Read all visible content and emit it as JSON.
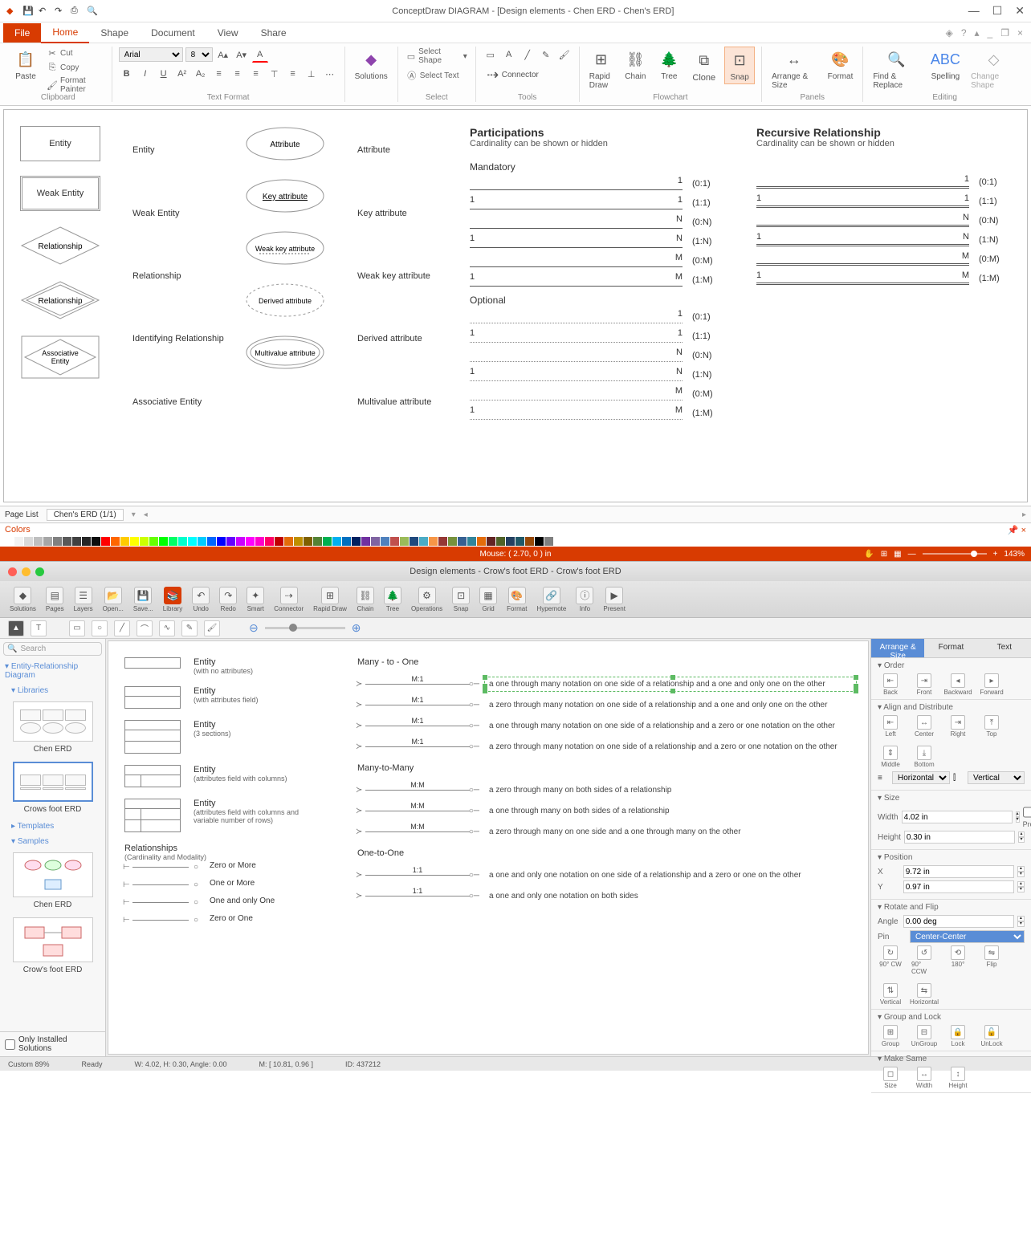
{
  "win": {
    "title": "ConceptDraw DIAGRAM - [Design elements - Chen ERD - Chen's ERD]",
    "file": "File",
    "tabs": [
      "Home",
      "Shape",
      "Document",
      "View",
      "Share"
    ],
    "active_tab": 0,
    "clipboard": {
      "paste": "Paste",
      "cut": "Cut",
      "copy": "Copy",
      "painter": "Format Painter",
      "label": "Clipboard"
    },
    "font": {
      "family": "Arial",
      "size": "8",
      "label": "Text Format"
    },
    "solutions": "Solutions",
    "select": {
      "selshape": "Select Shape",
      "seltext": "Select Text",
      "label": "Select"
    },
    "tools": {
      "connector": "Connector",
      "label": "Tools"
    },
    "flowchart": {
      "rapid": "Rapid Draw",
      "chain": "Chain",
      "tree": "Tree",
      "clone": "Clone",
      "snap": "Snap",
      "label": "Flowchart"
    },
    "panels": {
      "arrange": "Arrange & Size",
      "format": "Format",
      "label": "Panels"
    },
    "editing": {
      "find": "Find & Replace",
      "spell": "Spelling",
      "change": "Change Shape",
      "label": "Editing"
    },
    "page_list": "Page List",
    "page_tab": "Chen's ERD (1/1)",
    "colors_label": "Colors",
    "status_mouse": "Mouse: ( 2.70, 0 ) in",
    "zoom": "143%"
  },
  "chen": {
    "shapes": [
      {
        "name": "Entity",
        "label": "Entity"
      },
      {
        "name": "Weak Entity",
        "label": "Weak Entity"
      },
      {
        "name": "Relationship",
        "label": "Relationship"
      },
      {
        "name": "Relationship",
        "label": "Identifying Relationship"
      },
      {
        "name": "Associative Entity",
        "label": "Associative Entity"
      }
    ],
    "attrs": [
      {
        "name": "Attribute",
        "label": "Attribute"
      },
      {
        "name": "Key attribute",
        "label": "Key attribute"
      },
      {
        "name": "Weak key attribute",
        "label": "Weak key attribute"
      },
      {
        "name": "Derived attribute",
        "label": "Derived attribute"
      },
      {
        "name": "Multivalue attribute",
        "label": "Multivalue attribute"
      }
    ],
    "part_h": "Participations",
    "part_sub": "Cardinality can be shown or hidden",
    "rec_h": "Recursive Relationship",
    "rec_sub": "Cardinality can be shown or hidden",
    "mandatory": "Mandatory",
    "optional": "Optional",
    "cards": [
      {
        "l": "",
        "r": "1",
        "lbl": "(0:1)"
      },
      {
        "l": "1",
        "r": "1",
        "lbl": "(1:1)"
      },
      {
        "l": "",
        "r": "N",
        "lbl": "(0:N)"
      },
      {
        "l": "1",
        "r": "N",
        "lbl": "(1:N)"
      },
      {
        "l": "",
        "r": "M",
        "lbl": "(0:M)"
      },
      {
        "l": "1",
        "r": "M",
        "lbl": "(1:M)"
      }
    ],
    "opt_cards": [
      {
        "l": "",
        "r": "1",
        "lbl": "(0:1)"
      },
      {
        "l": "1",
        "r": "1",
        "lbl": "(1:1)"
      },
      {
        "l": "",
        "r": "N",
        "lbl": "(0:N)"
      },
      {
        "l": "1",
        "r": "N",
        "lbl": "(1:N)"
      },
      {
        "l": "",
        "r": "M",
        "lbl": "(0:M)"
      },
      {
        "l": "1",
        "r": "M",
        "lbl": "(1:M)"
      }
    ]
  },
  "mac": {
    "title": "Design elements - Crow's foot ERD - Crow's foot ERD",
    "tb": [
      "Solutions",
      "Pages",
      "Layers",
      "Open...",
      "Save...",
      "Library",
      "Undo",
      "Redo",
      "Smart",
      "Connector",
      "Rapid Draw",
      "Chain",
      "Tree",
      "Operations",
      "Snap",
      "Grid",
      "Format",
      "Hypernote",
      "Info",
      "Present"
    ],
    "search": "Search",
    "tree_hdr": "Entity-Relationship Diagram",
    "libraries": "Libraries",
    "lib1": "Chen ERD",
    "lib2": "Crows foot ERD",
    "templates": "Templates",
    "samples": "Samples",
    "sample1": "Chen ERD",
    "sample2": "Crow's foot ERD",
    "only_installed": "Only Installed Solutions",
    "status": {
      "ready": "Ready",
      "custom": "Custom 89%",
      "wh": "W: 4.02, H: 0.30, Angle: 0.00",
      "m": "M: [ 10.81, 0.96 ]",
      "id": "ID: 437212"
    }
  },
  "cf": {
    "entities": [
      {
        "t": "Entity",
        "s": "(with no attributes)",
        "sections": 1
      },
      {
        "t": "Entity",
        "s": "(with attributes field)",
        "sections": 2
      },
      {
        "t": "Entity",
        "s": "(3 sections)",
        "sections": 3
      },
      {
        "t": "Entity",
        "s": "(attributes field with columns)",
        "sections": 2,
        "cols": true
      },
      {
        "t": "Entity",
        "s": "(attributes field with columns and variable number of rows)",
        "sections": 3,
        "cols": true
      }
    ],
    "rel_h": "Relationships",
    "rel_s": "(Cardinality and Modality)",
    "rel_simple": [
      "Zero or More",
      "One or More",
      "One and only One",
      "Zero or One"
    ],
    "mto_h": "Many - to - One",
    "mto": [
      {
        "mid": "M:1",
        "d": "a one through many notation on one side of a relationship and a one and only one on the other",
        "sel": true
      },
      {
        "mid": "M:1",
        "d": "a zero through many notation on one side of a relationship and a one and only one on the other"
      },
      {
        "mid": "M:1",
        "d": "a one through many notation on one side of a relationship and a zero or one notation on the other"
      },
      {
        "mid": "M:1",
        "d": "a zero through many notation on one side of a relationship and a zero or one notation on the other"
      }
    ],
    "mtm_h": "Many-to-Many",
    "mtm": [
      {
        "mid": "M:M",
        "d": "a zero through many on both sides of a relationship"
      },
      {
        "mid": "M:M",
        "d": "a one through many on both sides of a relationship"
      },
      {
        "mid": "M:M",
        "d": "a zero through many on one side and a one through many on the other"
      }
    ],
    "oto_h": "One-to-One",
    "oto": [
      {
        "mid": "1:1",
        "d": "a one and only one notation on one side of a relationship and a zero or one on the other"
      },
      {
        "mid": "1:1",
        "d": "a one and only one notation on both sides"
      }
    ]
  },
  "insp": {
    "tabs": [
      "Arrange & Size",
      "Format",
      "Text"
    ],
    "order": "Order",
    "order_items": [
      "Back",
      "Front",
      "Backward",
      "Forward"
    ],
    "align": "Align and Distribute",
    "align_items": [
      "Left",
      "Center",
      "Right",
      "Top",
      "Middle",
      "Bottom"
    ],
    "horiz": "Horizontal",
    "vert": "Vertical",
    "size": "Size",
    "width_l": "Width",
    "width_v": "4.02 in",
    "height_l": "Height",
    "height_v": "0.30 in",
    "lock": "Lock Proportions",
    "pos": "Position",
    "x_l": "X",
    "x_v": "9.72 in",
    "y_l": "Y",
    "y_v": "0.97 in",
    "rotate": "Rotate and Flip",
    "angle_l": "Angle",
    "angle_v": "0.00 deg",
    "pin_l": "Pin",
    "pin_v": "Center-Center",
    "rotate_items": [
      "90° CW",
      "90° CCW",
      "180°",
      "Flip",
      "Vertical",
      "Horizontal"
    ],
    "group": "Group and Lock",
    "group_items": [
      "Group",
      "UnGroup",
      "Lock",
      "UnLock"
    ],
    "make": "Make Same",
    "make_items": [
      "Size",
      "Width",
      "Height"
    ]
  },
  "palette": [
    "#ffffff",
    "#f2f2f2",
    "#d9d9d9",
    "#bfbfbf",
    "#a6a6a6",
    "#808080",
    "#595959",
    "#404040",
    "#262626",
    "#0d0d0d",
    "#ff0000",
    "#ff6600",
    "#ffcc00",
    "#ffff00",
    "#ccff00",
    "#66ff00",
    "#00ff00",
    "#00ff66",
    "#00ffcc",
    "#00ffff",
    "#00ccff",
    "#0066ff",
    "#0000ff",
    "#6600ff",
    "#cc00ff",
    "#ff00ff",
    "#ff00cc",
    "#ff0066",
    "#c00000",
    "#e36c09",
    "#bf8f00",
    "#7f6000",
    "#548235",
    "#00b050",
    "#00b0f0",
    "#0070c0",
    "#002060",
    "#7030a0",
    "#8064a2",
    "#4f81bd",
    "#c0504d",
    "#9bbb59",
    "#1f497d",
    "#4bacc6",
    "#f79646",
    "#953734",
    "#76923c",
    "#366092",
    "#31859b",
    "#e46c0a",
    "#632423",
    "#4f6228",
    "#244061",
    "#205867",
    "#974806",
    "#000000",
    "#7f7f7f"
  ]
}
